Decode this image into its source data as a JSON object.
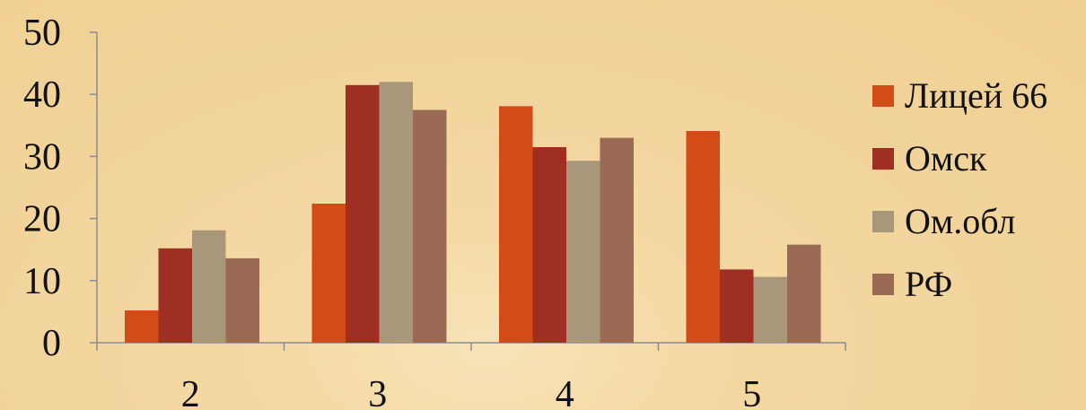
{
  "chart_data": {
    "type": "bar",
    "categories": [
      "2",
      "3",
      "4",
      "5"
    ],
    "series": [
      {
        "name": "Лицей 66",
        "color": "#d34b17",
        "values": [
          5.2,
          22.4,
          38.1,
          34.1
        ]
      },
      {
        "name": "Омск",
        "color": "#9e2f22",
        "values": [
          15.2,
          41.5,
          31.5,
          11.8
        ]
      },
      {
        "name": "Ом.обл",
        "color": "#a8977a",
        "values": [
          18.1,
          42.0,
          29.3,
          10.6
        ]
      },
      {
        "name": "РФ",
        "color": "#9a6a55",
        "values": [
          13.6,
          37.5,
          33.0,
          15.8
        ]
      }
    ],
    "ylim": [
      0,
      50
    ],
    "yticks": [
      "0",
      "10",
      "20",
      "30",
      "40",
      "50"
    ],
    "grid": false,
    "legend_position": "right",
    "title": "",
    "xlabel": "",
    "ylabel": ""
  }
}
